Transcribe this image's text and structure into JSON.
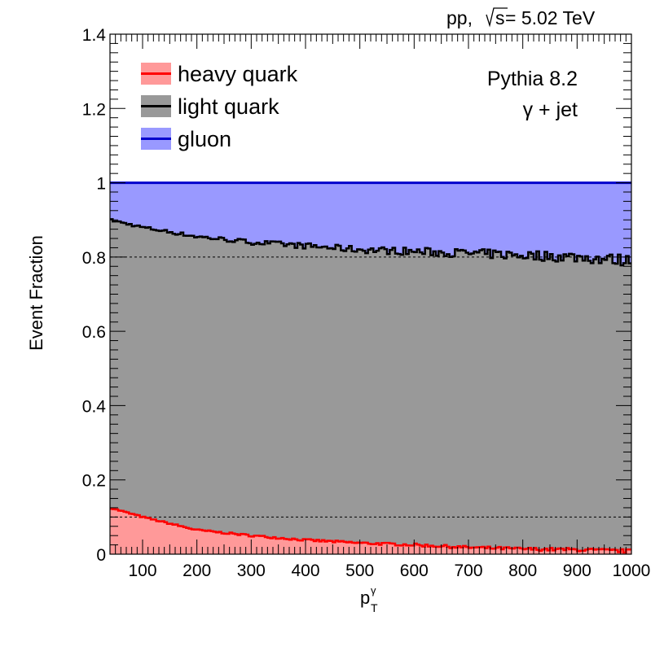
{
  "chart_data": {
    "type": "area",
    "title": "",
    "xlabel": "p",
    "xlabel_sub": "T",
    "xlabel_sup": "γ",
    "ylabel": "Event Fraction",
    "xlim": [
      40,
      1000
    ],
    "ylim": [
      0,
      1.4
    ],
    "x_ticks": [
      "100",
      "200",
      "300",
      "400",
      "500",
      "600",
      "700",
      "800",
      "900",
      "1000"
    ],
    "y_ticks": [
      "0",
      "0.2",
      "0.4",
      "0.6",
      "0.8",
      "1",
      "1.2",
      "1.4"
    ],
    "reference_lines": [
      0.8,
      0.1
    ],
    "legend_position": "top-left",
    "stacked": true,
    "x": [
      40,
      100,
      200,
      300,
      400,
      500,
      600,
      700,
      800,
      900,
      1000
    ],
    "series": [
      {
        "name": "heavy quark",
        "color_fill": "#ff9999",
        "color_line": "#ff0000",
        "values": [
          0.125,
          0.1,
          0.065,
          0.05,
          0.038,
          0.03,
          0.025,
          0.018,
          0.014,
          0.012,
          0.008
        ]
      },
      {
        "name": "light quark",
        "color_fill": "#999999",
        "color_line": "#000000",
        "cumulative_values": [
          0.9,
          0.88,
          0.855,
          0.84,
          0.83,
          0.82,
          0.815,
          0.81,
          0.805,
          0.8,
          0.79
        ]
      },
      {
        "name": "gluon",
        "color_fill": "#9999ff",
        "color_line": "#0000cc",
        "cumulative_values": [
          1,
          1,
          1,
          1,
          1,
          1,
          1,
          1,
          1,
          1,
          1
        ]
      }
    ],
    "annotations": {
      "top_right_prefix": "pp, ",
      "top_right_sqrt": "s",
      "top_right_suffix": " = 5.02 TeV",
      "generator": "Pythia 8.2",
      "process": "γ + jet"
    }
  }
}
